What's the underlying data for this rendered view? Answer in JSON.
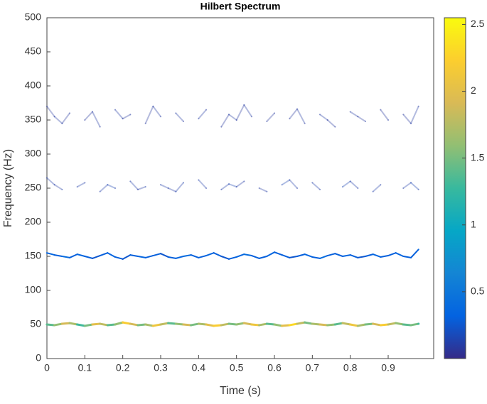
{
  "chart_data": {
    "type": "hilbert-spectrum",
    "title": "Hilbert Spectrum",
    "xlabel": "Time (s)",
    "ylabel": "Frequency (Hz)",
    "xlim": [
      0,
      1.02
    ],
    "ylim": [
      0,
      500
    ],
    "xticks": [
      0,
      0.1,
      0.2,
      0.3,
      0.4,
      0.5,
      0.6,
      0.7,
      0.8,
      0.9
    ],
    "yticks": [
      0,
      50,
      100,
      150,
      200,
      250,
      300,
      350,
      400,
      450,
      500
    ],
    "x": [
      0,
      0.02,
      0.04,
      0.06,
      0.08,
      0.1,
      0.12,
      0.14,
      0.16,
      0.18,
      0.2,
      0.22,
      0.24,
      0.26,
      0.28,
      0.3,
      0.32,
      0.34,
      0.36,
      0.38,
      0.4,
      0.42,
      0.44,
      0.46,
      0.48,
      0.5,
      0.52,
      0.54,
      0.56,
      0.58,
      0.6,
      0.62,
      0.64,
      0.66,
      0.68,
      0.7,
      0.72,
      0.74,
      0.76,
      0.78,
      0.8,
      0.82,
      0.84,
      0.86,
      0.88,
      0.9,
      0.92,
      0.94,
      0.96,
      0.98
    ],
    "series": [
      {
        "values": [
          50,
          49,
          51,
          52,
          50,
          48,
          50,
          51,
          49,
          50,
          53,
          51,
          49,
          50,
          48,
          50,
          52,
          51,
          50,
          49,
          51,
          50,
          48,
          49,
          51,
          50,
          52,
          50,
          49,
          51,
          50,
          48,
          49,
          51,
          53,
          51,
          50,
          49,
          50,
          52,
          50,
          48,
          50,
          51,
          49,
          50,
          52,
          50,
          49,
          51
        ],
        "amplitude": [
          1.4,
          1.6,
          1.9,
          1.7,
          1.3,
          1.5,
          2.0,
          1.8,
          1.4,
          1.6,
          2.2,
          1.9,
          1.5,
          1.7,
          2.1,
          1.8,
          1.4,
          1.6,
          1.9,
          1.5,
          1.7,
          2.0,
          2.2,
          1.8,
          1.5,
          1.6,
          1.9,
          2.1,
          1.7,
          1.4,
          1.6,
          2.0,
          2.3,
          1.8,
          1.5,
          1.7,
          1.9,
          1.6,
          1.4,
          1.8,
          2.1,
          1.7,
          1.5,
          1.9,
          2.2,
          1.8,
          1.6,
          1.4,
          1.5,
          1.3
        ]
      },
      {
        "values": [
          155,
          152,
          150,
          148,
          153,
          150,
          147,
          151,
          155,
          149,
          146,
          152,
          150,
          148,
          151,
          154,
          149,
          147,
          150,
          152,
          148,
          151,
          155,
          150,
          146,
          149,
          153,
          151,
          147,
          150,
          156,
          152,
          148,
          150,
          153,
          149,
          147,
          151,
          154,
          150,
          152,
          148,
          150,
          153,
          149,
          151,
          155,
          150,
          148,
          160
        ],
        "amplitude": [
          0.35,
          0.3,
          0.4,
          0.3,
          0.35,
          0.3,
          0.25,
          0.3,
          0.35,
          0.3,
          0.25,
          0.3,
          0.35,
          0.3,
          0.3,
          0.25,
          0.3,
          0.35,
          0.4,
          0.3,
          0.3,
          0.35,
          0.3,
          0.25,
          0.3,
          0.35,
          0.4,
          0.3,
          0.3,
          0.35,
          0.3,
          0.3,
          0.25,
          0.3,
          0.35,
          0.3,
          0.4,
          0.3,
          0.3,
          0.35,
          0.3,
          0.25,
          0.3,
          0.35,
          0.3,
          0.3,
          0.35,
          0.3,
          0.3,
          0.35
        ]
      },
      {
        "values": [
          265,
          255,
          248,
          null,
          252,
          258,
          null,
          245,
          255,
          250,
          null,
          260,
          248,
          252,
          null,
          255,
          250,
          245,
          258,
          null,
          262,
          250,
          null,
          248,
          256,
          252,
          260,
          null,
          250,
          245,
          null,
          255,
          262,
          250,
          null,
          258,
          248,
          null,
          null,
          252,
          260,
          250,
          null,
          245,
          255,
          null,
          null,
          250,
          258,
          248
        ],
        "amplitude": [
          0.12,
          0.1,
          0.15,
          null,
          0.12,
          0.1,
          null,
          0.12,
          0.15,
          0.1,
          null,
          0.12,
          0.1,
          0.15,
          null,
          0.12,
          0.1,
          0.12,
          0.15,
          null,
          0.12,
          0.1,
          null,
          0.12,
          0.15,
          0.1,
          0.12,
          null,
          0.1,
          0.12,
          null,
          0.15,
          0.12,
          0.1,
          null,
          0.12,
          0.1,
          null,
          null,
          0.15,
          0.12,
          0.1,
          null,
          0.12,
          0.1,
          null,
          null,
          0.12,
          0.15,
          0.1
        ]
      },
      {
        "values": [
          370,
          355,
          345,
          360,
          null,
          350,
          362,
          340,
          null,
          365,
          352,
          358,
          null,
          345,
          370,
          355,
          null,
          360,
          348,
          null,
          352,
          365,
          null,
          340,
          358,
          350,
          372,
          355,
          null,
          348,
          360,
          null,
          352,
          366,
          345,
          null,
          358,
          350,
          340,
          null,
          362,
          355,
          348,
          null,
          365,
          350,
          null,
          358,
          345,
          370
        ],
        "amplitude": [
          0.08,
          0.1,
          0.08,
          0.1,
          null,
          0.08,
          0.1,
          0.08,
          null,
          0.1,
          0.08,
          0.1,
          null,
          0.08,
          0.1,
          0.08,
          null,
          0.1,
          0.08,
          null,
          0.1,
          0.08,
          null,
          0.08,
          0.1,
          0.08,
          0.1,
          0.08,
          null,
          0.08,
          0.1,
          null,
          0.08,
          0.1,
          0.08,
          null,
          0.1,
          0.08,
          0.08,
          null,
          0.1,
          0.08,
          0.1,
          null,
          0.08,
          0.1,
          null,
          0.08,
          0.1,
          0.08
        ]
      }
    ],
    "clim": [
      0,
      2.55
    ],
    "cticks": [
      0.5,
      1,
      1.5,
      2,
      2.5
    ],
    "colormap": [
      "#352a87",
      "#0363e1",
      "#1485d4",
      "#06a7c6",
      "#38b99e",
      "#92bf73",
      "#d9ba56",
      "#fcce2e",
      "#f9fb0e"
    ]
  }
}
